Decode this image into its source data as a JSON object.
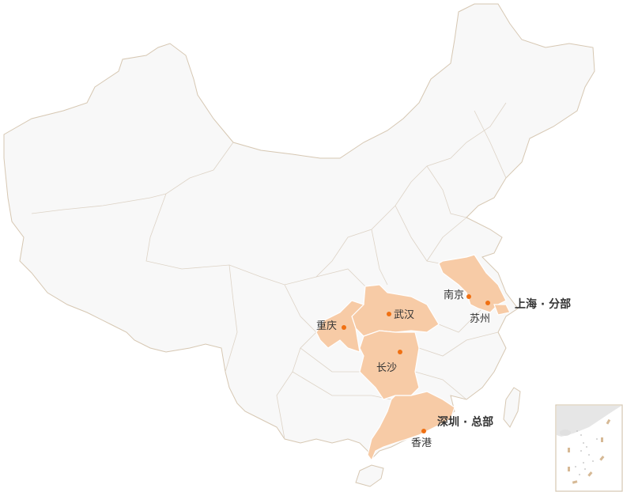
{
  "colors": {
    "land": "#f8f8f8",
    "border": "#d6c7b2",
    "highlight": "#f7cba6",
    "city_dot": "#f07012",
    "text": "#333333"
  },
  "cities": [
    {
      "name": "南京"
    },
    {
      "name": "苏州"
    },
    {
      "name": "武汉"
    },
    {
      "name": "重庆"
    },
    {
      "name": "长沙"
    },
    {
      "name": "香港"
    }
  ],
  "offices": {
    "shanghai": "上海 · 分部",
    "shenzhen": "深圳 · 总部"
  },
  "highlighted_regions": [
    "江苏",
    "上海",
    "湖北",
    "重庆",
    "湖南",
    "广东"
  ]
}
